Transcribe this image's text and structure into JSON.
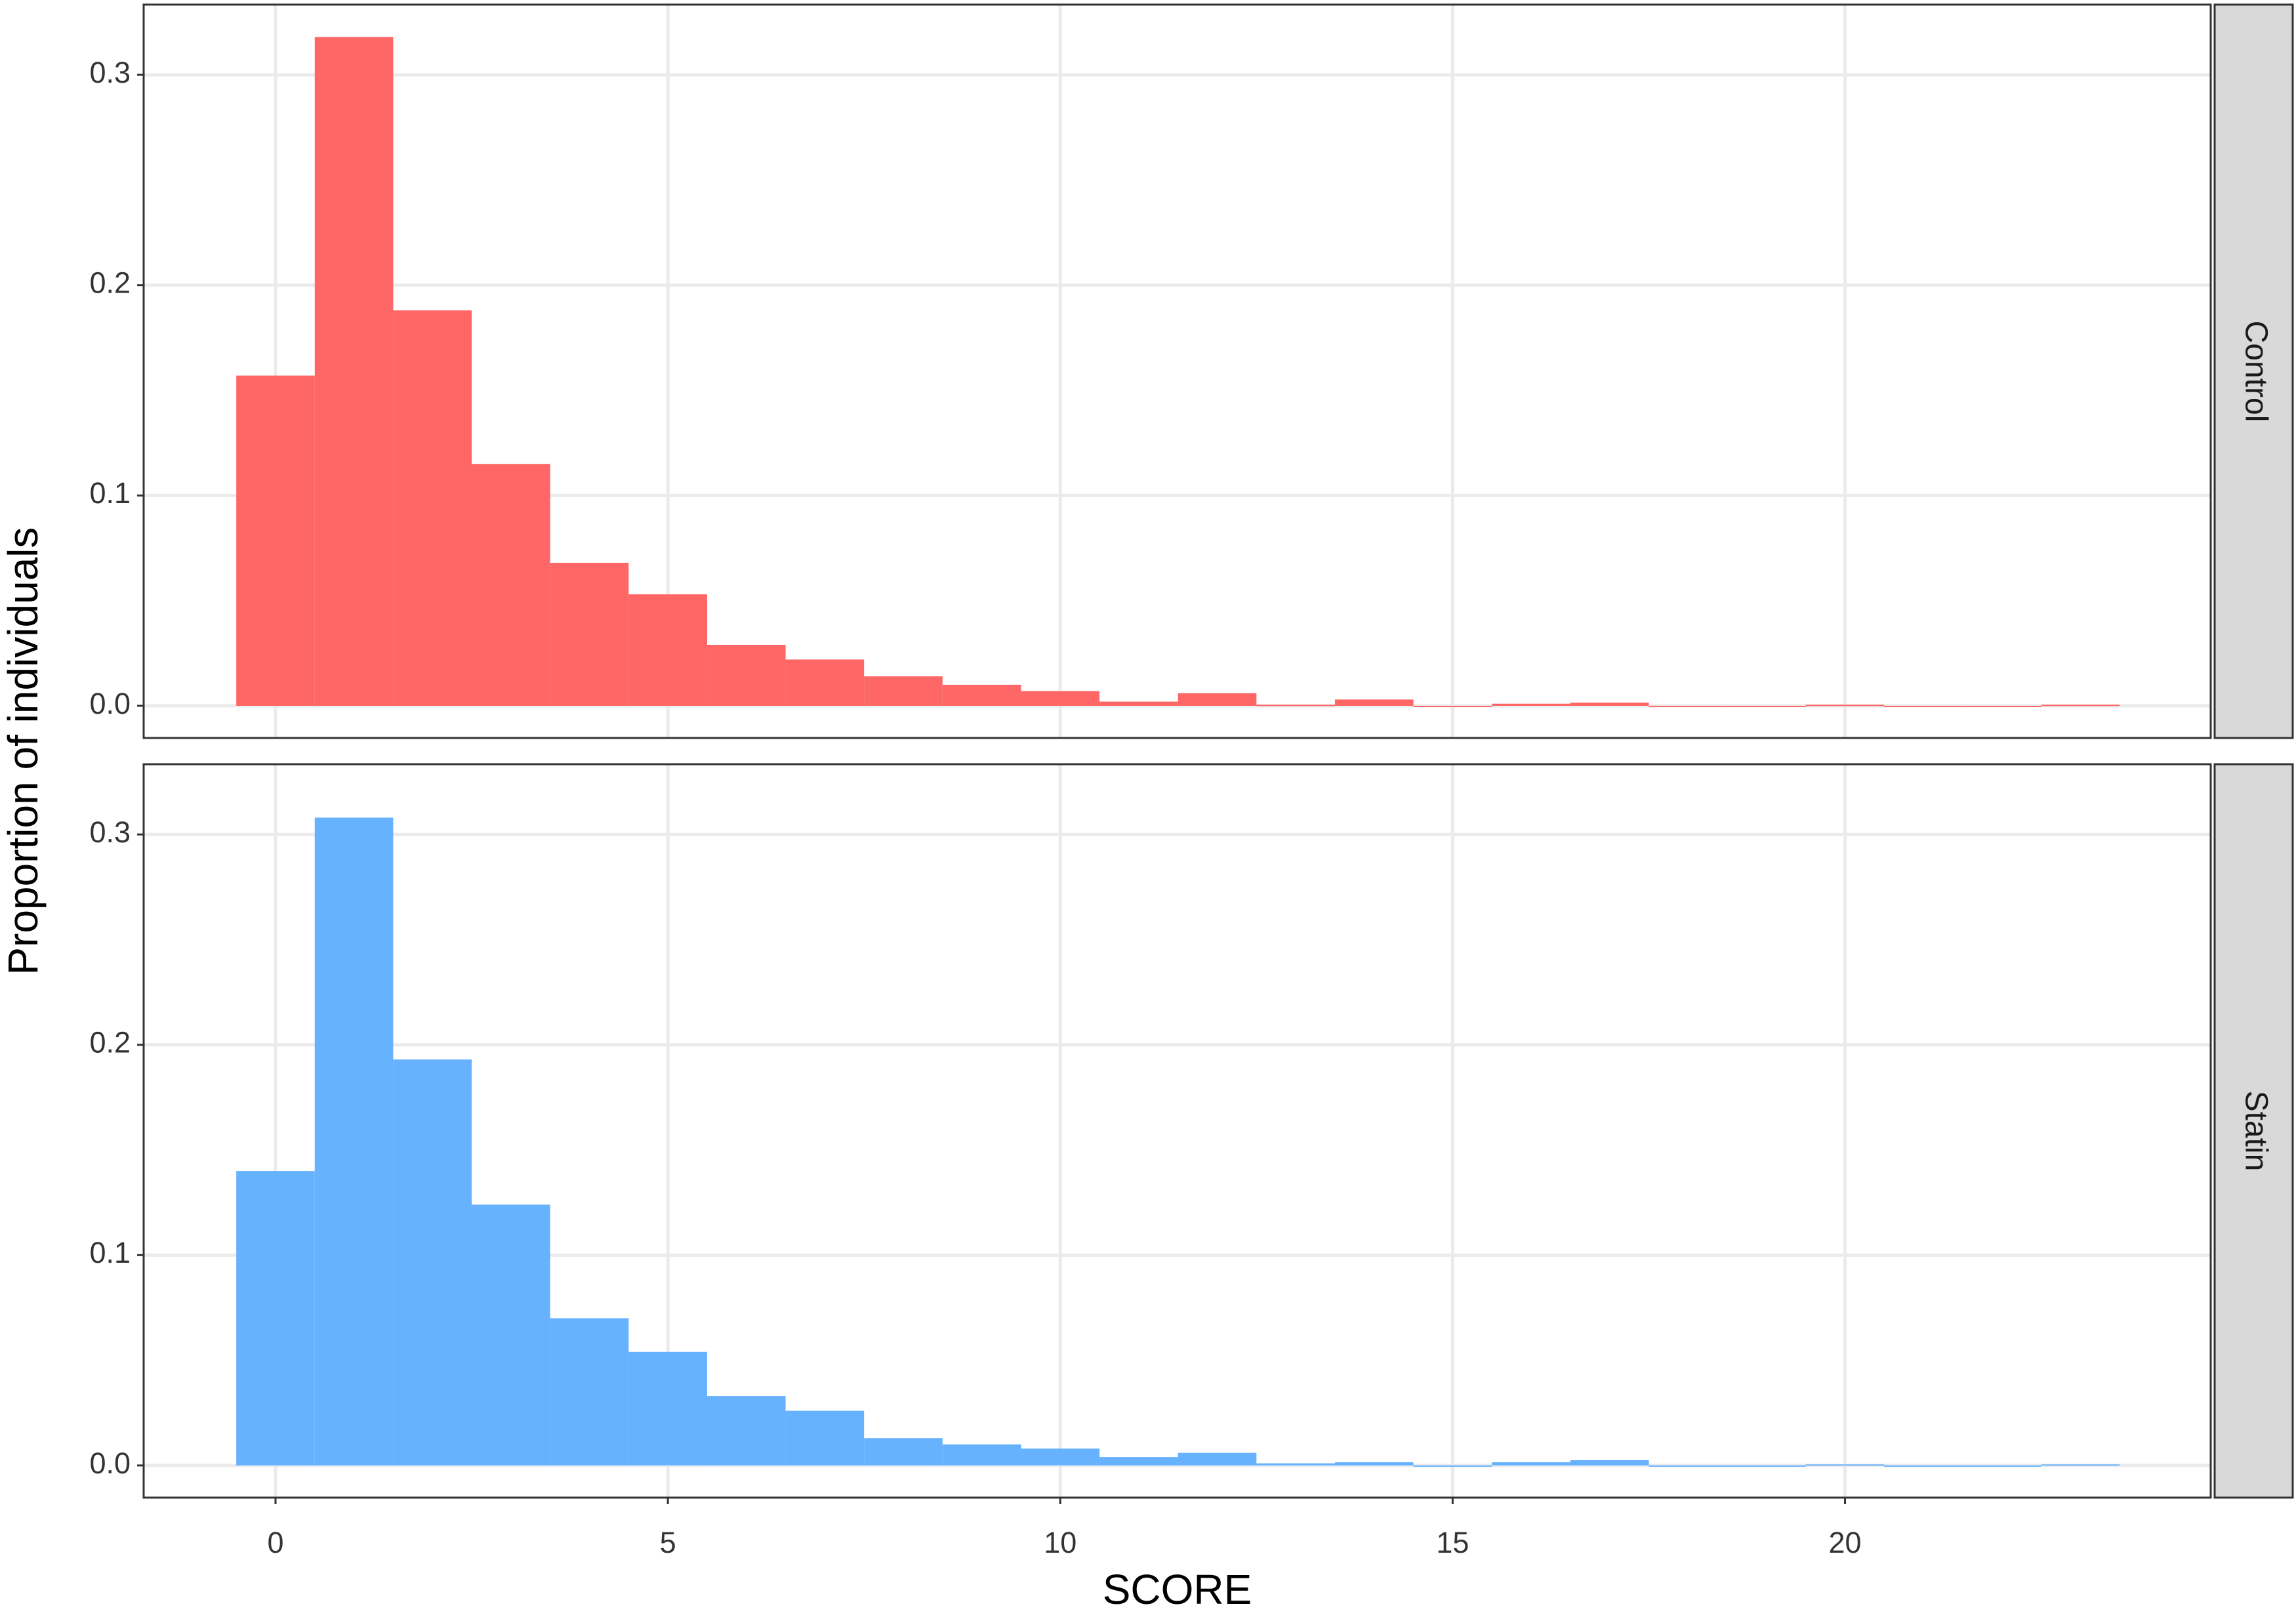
{
  "chart_data": [
    {
      "type": "histogram",
      "facet": "Control",
      "y_label": "Proportion of individuals",
      "color": "#ff6666",
      "grid": true,
      "bins": [
        -0.5,
        0.5,
        1.5,
        2.5,
        3.5,
        4.5,
        5.5,
        6.5,
        7.5,
        8.5,
        9.5,
        10.5,
        11.5,
        12.5,
        13.5,
        14.5,
        15.5,
        16.5,
        17.5,
        18.5,
        19.5,
        20.5,
        21.5,
        22.5,
        23.5
      ],
      "values": [
        0.157,
        0.318,
        0.188,
        0.115,
        0.068,
        0.053,
        0.029,
        0.022,
        0.014,
        0.01,
        0.007,
        0.002,
        0.006,
        0.0005,
        0.003,
        0,
        0.001,
        0.0015,
        0,
        0,
        0.0005,
        0,
        0,
        0.0005
      ],
      "xlim": [
        -1.68,
        24.66
      ],
      "xticks": [
        0,
        5,
        10,
        15,
        20
      ],
      "ylim": [
        -0.0153,
        0.3334
      ],
      "yticks": [
        {
          "value": 0,
          "label": "0.0"
        },
        0.1,
        0.2,
        0.3
      ]
    },
    {
      "type": "histogram",
      "facet": "Statin",
      "x_label": "SCORE",
      "color": "#66b2ff",
      "grid": true,
      "bins": [
        -0.5,
        0.5,
        1.5,
        2.5,
        3.5,
        4.5,
        5.5,
        6.5,
        7.5,
        8.5,
        9.5,
        10.5,
        11.5,
        12.5,
        13.5,
        14.5,
        15.5,
        16.5,
        17.5,
        18.5,
        19.5,
        20.5,
        21.5,
        22.5,
        23.5
      ],
      "values": [
        0.14,
        0.308,
        0.193,
        0.124,
        0.07,
        0.054,
        0.033,
        0.026,
        0.013,
        0.01,
        0.008,
        0.004,
        0.006,
        0.001,
        0.0015,
        0,
        0.0015,
        0.0025,
        0,
        0,
        0.0005,
        0,
        0,
        0.0005
      ],
      "xlim": [
        -1.68,
        24.66
      ],
      "xticks": [
        0,
        5,
        10,
        15,
        20
      ],
      "ylim": [
        -0.0153,
        0.3334
      ],
      "yticks": [
        {
          "value": 0,
          "label": "0.0"
        },
        0.1,
        0.2,
        0.3
      ]
    }
  ]
}
